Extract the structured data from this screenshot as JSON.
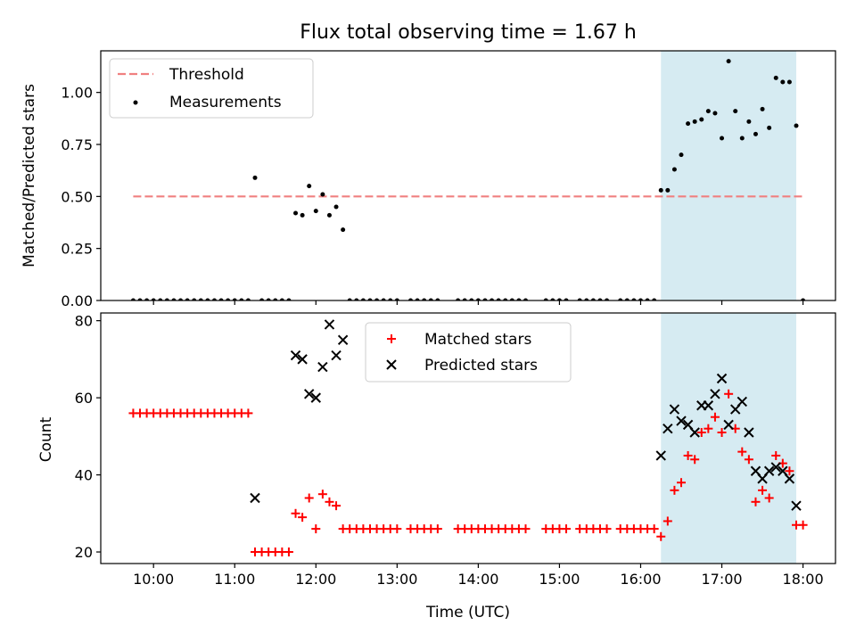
{
  "figure": {
    "title": "Flux total observing time = 1.67 h",
    "xlabel": "Time (UTC)"
  },
  "chart_data": [
    {
      "type": "scatter",
      "ylabel": "Matched/Predicted stars",
      "ylim": [
        0,
        1.2
      ],
      "xlim": [
        "09:21",
        "18:24"
      ],
      "grid": false,
      "legend_position": "top-left",
      "yticks": [
        "0.00",
        "0.25",
        "0.50",
        "0.75",
        "1.00"
      ],
      "xticks": [
        "10:00",
        "11:00",
        "12:00",
        "13:00",
        "14:00",
        "15:00",
        "16:00",
        "17:00",
        "18:00"
      ],
      "shaded_region": {
        "start": "16:15",
        "end": "17:55",
        "color": "#add8e6"
      },
      "threshold": {
        "name": "Threshold",
        "value": 0.5,
        "start": "09:45",
        "end": "18:00",
        "color": "#f08080"
      },
      "series": [
        {
          "name": "Measurements",
          "color": "#000000",
          "points": [
            [
              "09:45",
              0
            ],
            [
              "09:50",
              0
            ],
            [
              "09:55",
              0
            ],
            [
              "10:00",
              0
            ],
            [
              "10:05",
              0
            ],
            [
              "10:10",
              0
            ],
            [
              "10:15",
              0
            ],
            [
              "10:20",
              0
            ],
            [
              "10:25",
              0
            ],
            [
              "10:30",
              0
            ],
            [
              "10:35",
              0
            ],
            [
              "10:40",
              0
            ],
            [
              "10:45",
              0
            ],
            [
              "10:50",
              0
            ],
            [
              "10:55",
              0
            ],
            [
              "11:00",
              0
            ],
            [
              "11:05",
              0
            ],
            [
              "11:10",
              0
            ],
            [
              "11:15",
              0.59
            ],
            [
              "11:20",
              0
            ],
            [
              "11:25",
              0
            ],
            [
              "11:30",
              0
            ],
            [
              "11:35",
              0
            ],
            [
              "11:40",
              0
            ],
            [
              "11:45",
              0.42
            ],
            [
              "11:50",
              0.41
            ],
            [
              "11:55",
              0.55
            ],
            [
              "12:00",
              0.43
            ],
            [
              "12:05",
              0.51
            ],
            [
              "12:10",
              0.41
            ],
            [
              "12:15",
              0.45
            ],
            [
              "12:20",
              0.34
            ],
            [
              "12:25",
              0
            ],
            [
              "12:30",
              0
            ],
            [
              "12:35",
              0
            ],
            [
              "12:40",
              0
            ],
            [
              "12:45",
              0
            ],
            [
              "12:50",
              0
            ],
            [
              "12:55",
              0
            ],
            [
              "13:00",
              0
            ],
            [
              "13:10",
              0
            ],
            [
              "13:15",
              0
            ],
            [
              "13:20",
              0
            ],
            [
              "13:25",
              0
            ],
            [
              "13:30",
              0
            ],
            [
              "13:45",
              0
            ],
            [
              "13:50",
              0
            ],
            [
              "13:55",
              0
            ],
            [
              "14:00",
              0
            ],
            [
              "14:05",
              0
            ],
            [
              "14:10",
              0
            ],
            [
              "14:15",
              0
            ],
            [
              "14:20",
              0
            ],
            [
              "14:25",
              0
            ],
            [
              "14:30",
              0
            ],
            [
              "14:35",
              0
            ],
            [
              "14:50",
              0
            ],
            [
              "14:55",
              0
            ],
            [
              "15:00",
              0
            ],
            [
              "15:05",
              0
            ],
            [
              "15:15",
              0
            ],
            [
              "15:20",
              0
            ],
            [
              "15:25",
              0
            ],
            [
              "15:30",
              0
            ],
            [
              "15:35",
              0
            ],
            [
              "15:45",
              0
            ],
            [
              "15:50",
              0
            ],
            [
              "15:55",
              0
            ],
            [
              "16:00",
              0
            ],
            [
              "16:05",
              0
            ],
            [
              "16:10",
              0
            ],
            [
              "16:15",
              0.53
            ],
            [
              "16:20",
              0.53
            ],
            [
              "16:25",
              0.63
            ],
            [
              "16:30",
              0.7
            ],
            [
              "16:35",
              0.85
            ],
            [
              "16:40",
              0.86
            ],
            [
              "16:45",
              0.87
            ],
            [
              "16:50",
              0.91
            ],
            [
              "16:55",
              0.9
            ],
            [
              "17:00",
              0.78
            ],
            [
              "17:05",
              1.15
            ],
            [
              "17:10",
              0.91
            ],
            [
              "17:15",
              0.78
            ],
            [
              "17:20",
              0.86
            ],
            [
              "17:25",
              0.8
            ],
            [
              "17:30",
              0.92
            ],
            [
              "17:35",
              0.83
            ],
            [
              "17:40",
              1.07
            ],
            [
              "17:45",
              1.05
            ],
            [
              "17:50",
              1.05
            ],
            [
              "17:55",
              0.84
            ],
            [
              "18:00",
              0
            ]
          ]
        }
      ]
    },
    {
      "type": "scatter",
      "ylabel": "Count",
      "ylim": [
        17,
        82
      ],
      "xlim": [
        "09:21",
        "18:24"
      ],
      "grid": false,
      "legend_position": "top-center",
      "yticks": [
        "20",
        "40",
        "60",
        "80"
      ],
      "xticks": [
        "10:00",
        "11:00",
        "12:00",
        "13:00",
        "14:00",
        "15:00",
        "16:00",
        "17:00",
        "18:00"
      ],
      "shaded_region": {
        "start": "16:15",
        "end": "17:55",
        "color": "#add8e6"
      },
      "series": [
        {
          "name": "Matched stars",
          "marker": "+",
          "color": "#ff0000",
          "points": [
            [
              "09:45",
              56
            ],
            [
              "09:50",
              56
            ],
            [
              "09:55",
              56
            ],
            [
              "10:00",
              56
            ],
            [
              "10:05",
              56
            ],
            [
              "10:10",
              56
            ],
            [
              "10:15",
              56
            ],
            [
              "10:20",
              56
            ],
            [
              "10:25",
              56
            ],
            [
              "10:30",
              56
            ],
            [
              "10:35",
              56
            ],
            [
              "10:40",
              56
            ],
            [
              "10:45",
              56
            ],
            [
              "10:50",
              56
            ],
            [
              "10:55",
              56
            ],
            [
              "11:00",
              56
            ],
            [
              "11:05",
              56
            ],
            [
              "11:10",
              56
            ],
            [
              "11:15",
              20
            ],
            [
              "11:20",
              20
            ],
            [
              "11:25",
              20
            ],
            [
              "11:30",
              20
            ],
            [
              "11:35",
              20
            ],
            [
              "11:40",
              20
            ],
            [
              "11:45",
              30
            ],
            [
              "11:50",
              29
            ],
            [
              "11:55",
              34
            ],
            [
              "12:00",
              26
            ],
            [
              "12:05",
              35
            ],
            [
              "12:10",
              33
            ],
            [
              "12:15",
              32
            ],
            [
              "12:20",
              26
            ],
            [
              "12:25",
              26
            ],
            [
              "12:30",
              26
            ],
            [
              "12:35",
              26
            ],
            [
              "12:40",
              26
            ],
            [
              "12:45",
              26
            ],
            [
              "12:50",
              26
            ],
            [
              "12:55",
              26
            ],
            [
              "13:00",
              26
            ],
            [
              "13:10",
              26
            ],
            [
              "13:15",
              26
            ],
            [
              "13:20",
              26
            ],
            [
              "13:25",
              26
            ],
            [
              "13:30",
              26
            ],
            [
              "13:45",
              26
            ],
            [
              "13:50",
              26
            ],
            [
              "13:55",
              26
            ],
            [
              "14:00",
              26
            ],
            [
              "14:05",
              26
            ],
            [
              "14:10",
              26
            ],
            [
              "14:15",
              26
            ],
            [
              "14:20",
              26
            ],
            [
              "14:25",
              26
            ],
            [
              "14:30",
              26
            ],
            [
              "14:35",
              26
            ],
            [
              "14:50",
              26
            ],
            [
              "14:55",
              26
            ],
            [
              "15:00",
              26
            ],
            [
              "15:05",
              26
            ],
            [
              "15:15",
              26
            ],
            [
              "15:20",
              26
            ],
            [
              "15:25",
              26
            ],
            [
              "15:30",
              26
            ],
            [
              "15:35",
              26
            ],
            [
              "15:45",
              26
            ],
            [
              "15:50",
              26
            ],
            [
              "15:55",
              26
            ],
            [
              "16:00",
              26
            ],
            [
              "16:05",
              26
            ],
            [
              "16:10",
              26
            ],
            [
              "16:15",
              24
            ],
            [
              "16:20",
              28
            ],
            [
              "16:25",
              36
            ],
            [
              "16:30",
              38
            ],
            [
              "16:35",
              45
            ],
            [
              "16:40",
              44
            ],
            [
              "16:45",
              51
            ],
            [
              "16:50",
              52
            ],
            [
              "16:55",
              55
            ],
            [
              "17:00",
              51
            ],
            [
              "17:05",
              61
            ],
            [
              "17:10",
              52
            ],
            [
              "17:15",
              46
            ],
            [
              "17:20",
              44
            ],
            [
              "17:25",
              33
            ],
            [
              "17:30",
              36
            ],
            [
              "17:35",
              34
            ],
            [
              "17:40",
              45
            ],
            [
              "17:45",
              43
            ],
            [
              "17:50",
              41
            ],
            [
              "17:55",
              27
            ],
            [
              "18:00",
              27
            ]
          ]
        },
        {
          "name": "Predicted stars",
          "marker": "x",
          "color": "#000000",
          "points": [
            [
              "11:15",
              34
            ],
            [
              "11:45",
              71
            ],
            [
              "11:50",
              70
            ],
            [
              "11:55",
              61
            ],
            [
              "12:00",
              60
            ],
            [
              "12:05",
              68
            ],
            [
              "12:10",
              79
            ],
            [
              "12:15",
              71
            ],
            [
              "12:20",
              75
            ],
            [
              "16:15",
              45
            ],
            [
              "16:20",
              52
            ],
            [
              "16:25",
              57
            ],
            [
              "16:30",
              54
            ],
            [
              "16:35",
              53
            ],
            [
              "16:40",
              51
            ],
            [
              "16:45",
              58
            ],
            [
              "16:50",
              58
            ],
            [
              "16:55",
              61
            ],
            [
              "17:00",
              65
            ],
            [
              "17:05",
              53
            ],
            [
              "17:10",
              57
            ],
            [
              "17:15",
              59
            ],
            [
              "17:20",
              51
            ],
            [
              "17:25",
              41
            ],
            [
              "17:30",
              39
            ],
            [
              "17:35",
              41
            ],
            [
              "17:40",
              42
            ],
            [
              "17:45",
              41
            ],
            [
              "17:50",
              39
            ],
            [
              "17:55",
              32
            ]
          ]
        }
      ]
    }
  ]
}
